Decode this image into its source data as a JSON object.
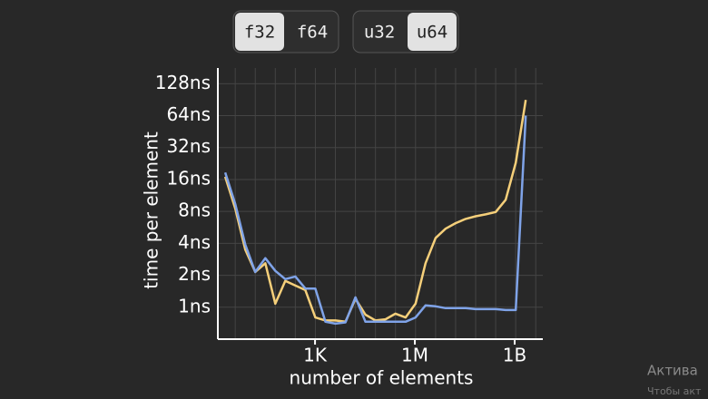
{
  "toggles": [
    {
      "options": [
        {
          "label": "f32",
          "selected": true
        },
        {
          "label": "f64",
          "selected": false
        }
      ]
    },
    {
      "options": [
        {
          "label": "u32",
          "selected": false
        },
        {
          "label": "u64",
          "selected": true
        }
      ]
    }
  ],
  "chart_data": {
    "type": "line",
    "xlabel": "number of elements",
    "ylabel": "time per element",
    "xscale": "log",
    "yscale": "log",
    "x": [
      2,
      4,
      8,
      16,
      32,
      64,
      128,
      256,
      512,
      1024,
      2048,
      4096,
      8192,
      16384,
      32768,
      65536,
      131072,
      262144,
      524288,
      1048576,
      2097152,
      4194304,
      8388608,
      16777216,
      33554432,
      67108864,
      134217728,
      268435456,
      536870912,
      1073741824,
      2147483648
    ],
    "series": [
      {
        "name": "f32",
        "color": "#f5cf7a",
        "values": [
          17,
          8.5,
          3.5,
          2.15,
          2.6,
          1.08,
          1.77,
          1.6,
          1.45,
          0.8,
          0.75,
          0.75,
          0.73,
          1.2,
          0.85,
          0.75,
          0.77,
          0.87,
          0.8,
          1.08,
          2.6,
          4.5,
          5.5,
          6.2,
          6.8,
          7.2,
          7.5,
          7.9,
          10.3,
          23,
          90
        ]
      },
      {
        "name": "u64",
        "color": "#7fa3e8",
        "values": [
          18.6,
          9.4,
          3.9,
          2.15,
          2.9,
          2.2,
          1.84,
          1.95,
          1.5,
          1.5,
          0.73,
          0.7,
          0.72,
          1.24,
          0.73,
          0.73,
          0.73,
          0.73,
          0.73,
          0.8,
          1.04,
          1.02,
          0.98,
          0.98,
          0.98,
          0.96,
          0.96,
          0.96,
          0.94,
          0.94,
          64
        ]
      }
    ],
    "xlim": [
      1.2,
      7000000000
    ],
    "ylim": [
      0.5,
      180
    ],
    "xticks": [
      {
        "value": 1000,
        "label": "1K"
      },
      {
        "value": 1000000,
        "label": "1M"
      },
      {
        "value": 1000000000,
        "label": "1B"
      }
    ],
    "xminorticks": [
      4,
      16,
      64,
      256,
      1024,
      4096,
      16384,
      65536,
      262144,
      1048576,
      4194304,
      16777216,
      67108864,
      268435456,
      1073741824,
      4294967296
    ],
    "yticks": [
      {
        "value": 1,
        "label": "1ns"
      },
      {
        "value": 2,
        "label": "2ns"
      },
      {
        "value": 4,
        "label": "4ns"
      },
      {
        "value": 8,
        "label": "8ns"
      },
      {
        "value": 16,
        "label": "16ns"
      },
      {
        "value": 32,
        "label": "32ns"
      },
      {
        "value": 64,
        "label": "64ns"
      },
      {
        "value": 128,
        "label": "128ns"
      }
    ],
    "grid": true
  },
  "watermark": {
    "title": "Актива",
    "subtitle": "Чтобы акт"
  }
}
